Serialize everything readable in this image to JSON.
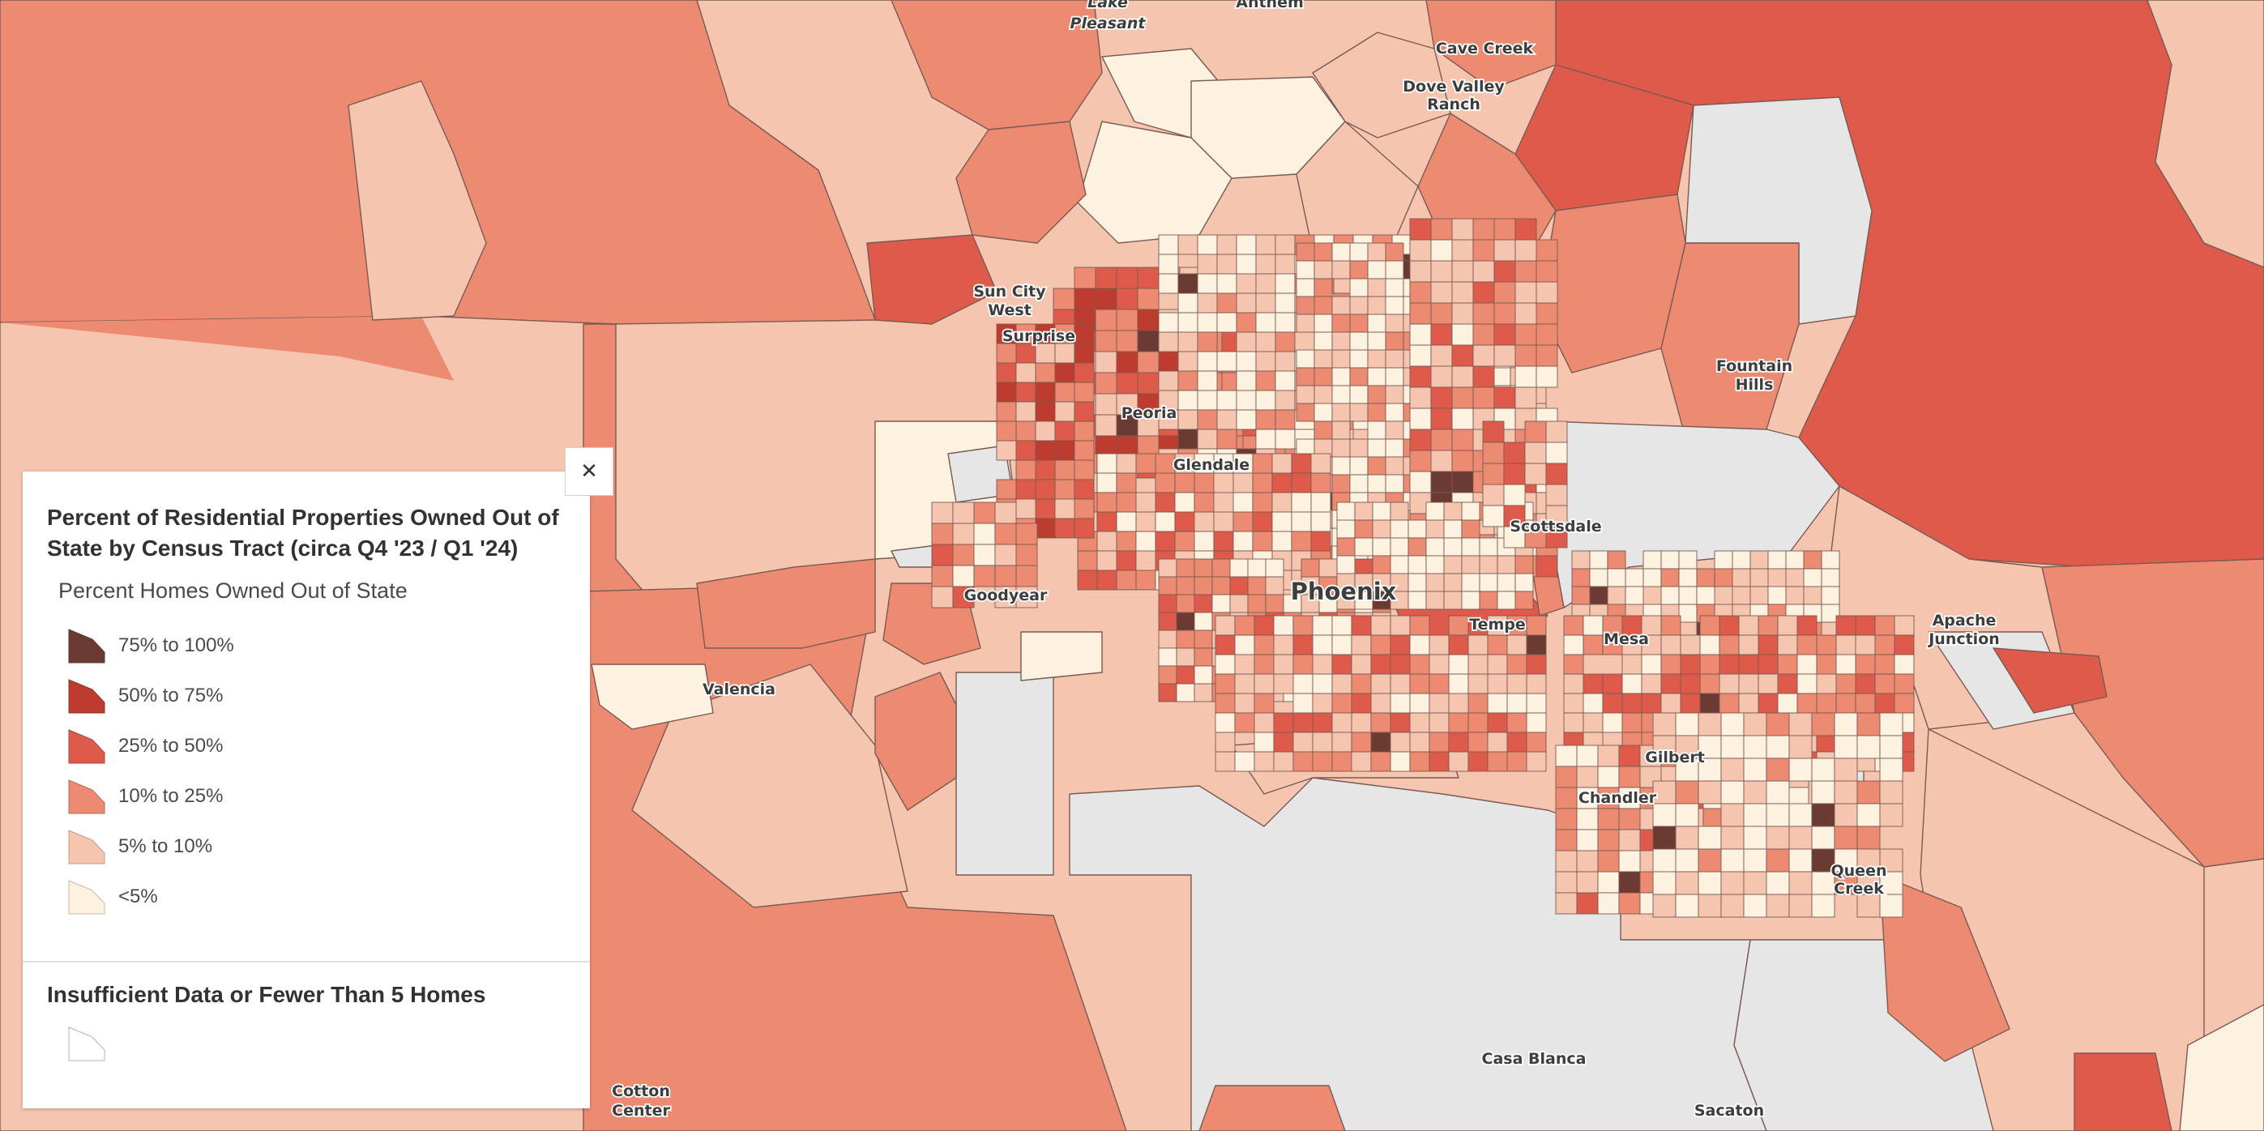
{
  "map": {
    "place_labels": {
      "lake_pleasant_a": "Lake",
      "lake_pleasant_b": "Pleasant",
      "anthem": "Anthem",
      "cave_creek": "Cave Creek",
      "dove_valley_a": "Dove Valley",
      "dove_valley_b": "Ranch",
      "sun_city_west_a": "Sun City",
      "sun_city_west_b": "West",
      "surprise": "Surprise",
      "fountain_hills_a": "Fountain",
      "fountain_hills_b": "Hills",
      "peoria": "Peoria",
      "glendale": "Glendale",
      "scottsdale": "Scottsdale",
      "phoenix": "Phoenix",
      "goodyear": "Goodyear",
      "tempe": "Tempe",
      "mesa": "Mesa",
      "apache_junction_a": "Apache",
      "apache_junction_b": "Junction",
      "valencia": "Valencia",
      "gilbert": "Gilbert",
      "chandler": "Chandler",
      "queen_creek_a": "Queen",
      "queen_creek_b": "Creek",
      "casa_blanca": "Casa Blanca",
      "sacaton": "Sacaton",
      "cotton_center_a": "Cotton",
      "cotton_center_b": "Center"
    },
    "colors": {
      "c0": "#fdf1e0",
      "c1": "#f6c5b0",
      "c2": "#ec8a72",
      "c3": "#de5a4b",
      "c4": "#bd3b2f",
      "c5": "#6b3a33",
      "no_data": "#e6e6e6",
      "boundary": "#7a5a52"
    }
  },
  "legend": {
    "title": "Percent of Residential Properties Owned Out of State by Census Tract (circa Q4 '23 / Q1 '24)",
    "field_label": "Percent Homes Owned Out of State",
    "items": [
      {
        "label": "75% to 100%",
        "color": "#6b3a33"
      },
      {
        "label": "50% to 75%",
        "color": "#bd3b2f"
      },
      {
        "label": "25% to 50%",
        "color": "#de5a4b"
      },
      {
        "label": "10% to 25%",
        "color": "#ec8a72"
      },
      {
        "label": "5% to 10%",
        "color": "#f6c5b0"
      },
      {
        "label": "<5%",
        "color": "#fdf1e0"
      }
    ],
    "no_data_title": "Insufficient Data or Fewer Than 5 Homes",
    "no_data_color": "#ffffff",
    "close_icon": "close-icon"
  }
}
